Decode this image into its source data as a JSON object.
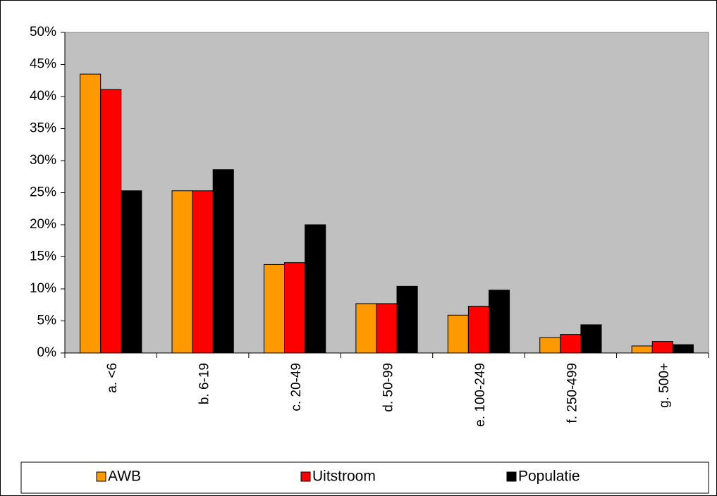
{
  "chart_data": {
    "type": "bar",
    "categories": [
      "a. <6",
      "b. 6-19",
      "c. 20-49",
      "d. 50-99",
      "e. 100-249",
      "f. 250-499",
      "g. 500+"
    ],
    "series": [
      {
        "name": "AWB",
        "color": "#ff9900",
        "values": [
          43.5,
          25.3,
          13.8,
          7.7,
          5.9,
          2.4,
          1.1
        ]
      },
      {
        "name": "Uitstroom",
        "color": "#ff0000",
        "values": [
          41.1,
          25.3,
          14.1,
          7.7,
          7.3,
          2.9,
          1.8
        ]
      },
      {
        "name": "Populatie",
        "color": "#000000",
        "values": [
          25.3,
          28.6,
          20.0,
          10.4,
          9.8,
          4.4,
          1.3
        ]
      }
    ],
    "ylim": [
      0,
      50
    ],
    "yticks": [
      {
        "value": 0,
        "label": "0%"
      },
      {
        "value": 5,
        "label": "5%"
      },
      {
        "value": 10,
        "label": "10%"
      },
      {
        "value": 15,
        "label": "15%"
      },
      {
        "value": 20,
        "label": "20%"
      },
      {
        "value": 25,
        "label": "25%"
      },
      {
        "value": 30,
        "label": "30%"
      },
      {
        "value": 35,
        "label": "35%"
      },
      {
        "value": 40,
        "label": "40%"
      },
      {
        "value": 45,
        "label": "45%"
      },
      {
        "value": 50,
        "label": "50%"
      }
    ],
    "grid": false,
    "plot_background": "#c0c0c0",
    "legend": "bottom"
  }
}
